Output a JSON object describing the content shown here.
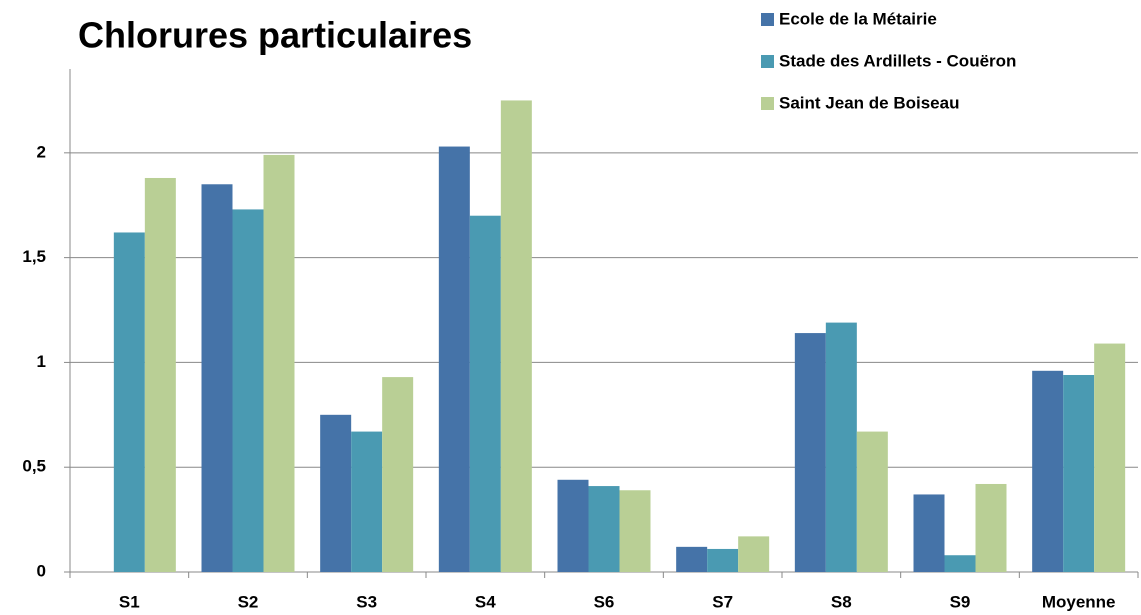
{
  "chart_data": {
    "type": "bar",
    "title": "Chlorures particulaires",
    "categories": [
      "S1",
      "S2",
      "S3",
      "S4",
      "S6",
      "S7",
      "S8",
      "S9",
      "Moyenne"
    ],
    "series": [
      {
        "name": "Ecole de la Métairie",
        "color": "#4573a8",
        "values": [
          null,
          1.85,
          0.75,
          2.03,
          0.44,
          0.12,
          1.14,
          0.37,
          0.96
        ]
      },
      {
        "name": "Stade des Ardillets - Couëron",
        "color": "#4a9ab2",
        "values": [
          1.62,
          1.73,
          0.67,
          1.7,
          0.41,
          0.11,
          1.19,
          0.08,
          0.94
        ]
      },
      {
        "name": "Saint Jean de Boiseau",
        "color": "#b9cf95",
        "values": [
          1.88,
          1.99,
          0.93,
          2.25,
          0.39,
          0.17,
          0.67,
          0.42,
          1.09
        ]
      }
    ],
    "ylim": [
      0,
      2.4
    ],
    "yticks": [
      0,
      {
        "value": 0.5,
        "label": "0,5"
      },
      1,
      {
        "value": 1.5,
        "label": "1,5"
      },
      2
    ],
    "grid": true,
    "legend": "top-right"
  }
}
